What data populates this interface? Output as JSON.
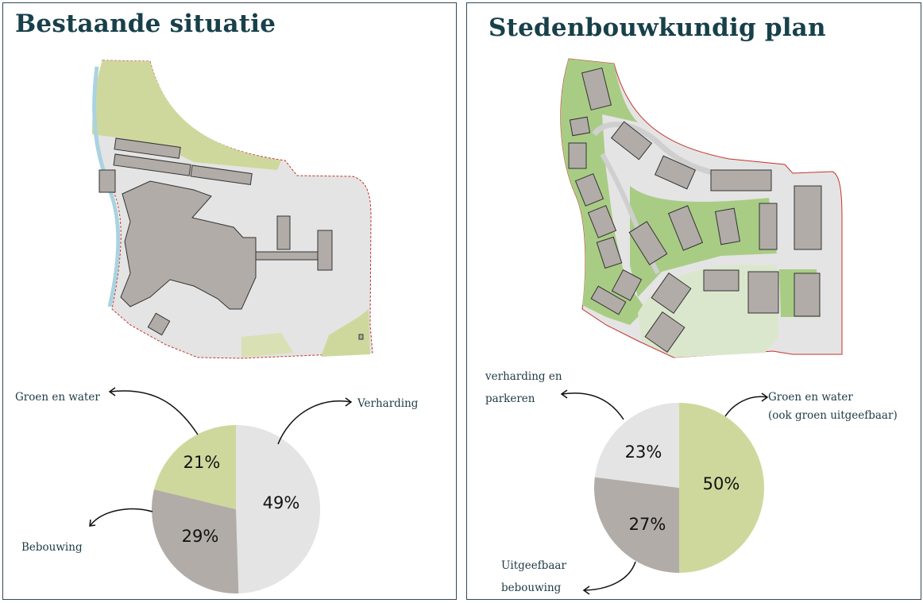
{
  "colors": {
    "green": "#cfd89c",
    "paving": "#e4e4e4",
    "building": "#b1aca7",
    "water": "#a9d3e0",
    "plan_green": "#a9cc85",
    "title": "#17404a"
  },
  "left": {
    "title": "Bestaande situatie",
    "map_description_icon": "site-plan-existing"
  },
  "right": {
    "title": "Stedenbouwkundig plan",
    "map_description_icon": "site-plan-proposed"
  },
  "chart_data": [
    {
      "type": "pie",
      "title": "",
      "slices": [
        {
          "label": "Verharding",
          "value": 49,
          "display": "49%",
          "color": "#e4e4e4"
        },
        {
          "label": "Bebouwing",
          "value": 29,
          "display": "29%",
          "color": "#b1aca7"
        },
        {
          "label": "Groen en water",
          "value": 21,
          "display": "21%",
          "color": "#cfd89c"
        }
      ]
    },
    {
      "type": "pie",
      "title": "",
      "slices": [
        {
          "label": "Groen en water (ook groen uitgeefbaar)",
          "label_lines": [
            "Groen en water",
            "(ook groen uitgeefbaar)"
          ],
          "value": 50,
          "display": "50%",
          "color": "#cfd89c"
        },
        {
          "label": "Uitgeefbaar bebouwing",
          "label_lines": [
            "Uitgeefbaar",
            "bebouwing"
          ],
          "value": 27,
          "display": "27%",
          "color": "#b1aca7"
        },
        {
          "label": "verharding en parkeren",
          "label_lines": [
            "verharding en",
            "parkeren"
          ],
          "value": 23,
          "display": "23%",
          "color": "#e4e4e4"
        }
      ]
    }
  ]
}
